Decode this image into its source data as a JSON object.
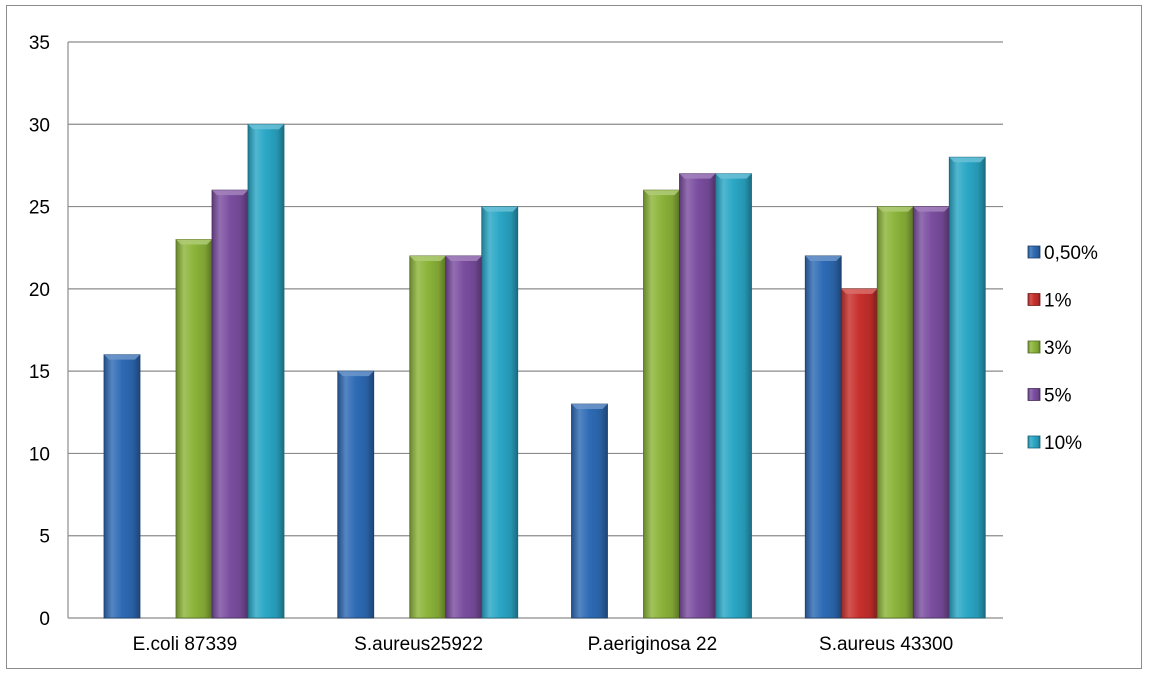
{
  "chart_data": {
    "type": "bar",
    "title": "",
    "xlabel": "",
    "ylabel": "",
    "categories": [
      "E.coli 87339",
      "S.aureus25922",
      "P.aeriginosa 22",
      "S.aureus 43300"
    ],
    "series": [
      {
        "name": "0,50%",
        "values": [
          16,
          15,
          13,
          22
        ],
        "color": "#2e6bb5"
      },
      {
        "name": "1%",
        "values": [
          0,
          0,
          0,
          20
        ],
        "color": "#c8302c"
      },
      {
        "name": "3%",
        "values": [
          23,
          22,
          26,
          25
        ],
        "color": "#8cb43a"
      },
      {
        "name": "5%",
        "values": [
          26,
          22,
          27,
          25
        ],
        "color": "#7b4ea0"
      },
      {
        "name": "10%",
        "values": [
          30,
          25,
          27,
          28
        ],
        "color": "#2aa7c6"
      }
    ],
    "ylim": [
      0,
      35
    ],
    "yticks": [
      0,
      5,
      10,
      15,
      20,
      25,
      30,
      35
    ],
    "grid": true,
    "legend_position": "right",
    "bar_style": "3d-bevel"
  }
}
